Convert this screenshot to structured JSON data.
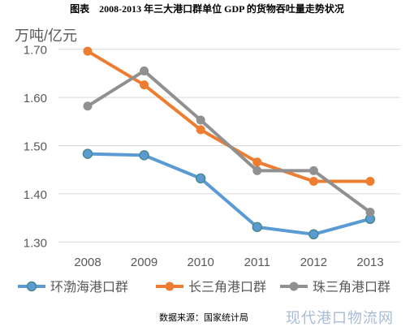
{
  "header": {
    "title": "图表　2008-2013 年三大港口群单位 GDP 的货物吞吐量走势状况"
  },
  "footer": {
    "source": "数据来源：国家统计局",
    "watermark": "现代港口物流网"
  },
  "chart_data": {
    "type": "line",
    "title": "图表　2008-2013 年三大港口群单位 GDP 的货物吞吐量走势状况",
    "ylabel": "万吨/亿元",
    "xlabel": "",
    "categories": [
      "2008",
      "2009",
      "2010",
      "2011",
      "2012",
      "2013"
    ],
    "ylim": [
      1.25,
      1.75
    ],
    "yticks": [
      "1.30",
      "1.40",
      "1.50",
      "1.60",
      "1.70"
    ],
    "grid": true,
    "legend": "bottom",
    "series": [
      {
        "name": "环渤海港口群",
        "color": "#5b9bd5",
        "values": [
          1.483,
          1.48,
          1.432,
          1.331,
          1.316,
          1.348
        ]
      },
      {
        "name": "长三角港口群",
        "color": "#ed7d31",
        "values": [
          1.696,
          1.626,
          1.533,
          1.466,
          1.426,
          1.426
        ]
      },
      {
        "name": "珠三角港口群",
        "color": "#909090",
        "values": [
          1.582,
          1.655,
          1.553,
          1.448,
          1.448,
          1.362
        ]
      }
    ],
    "colors": {
      "grid": "#d9d9d9",
      "axis": "#d9d9d9",
      "text": "#595959",
      "marker_env": "#4a8a8a"
    }
  }
}
